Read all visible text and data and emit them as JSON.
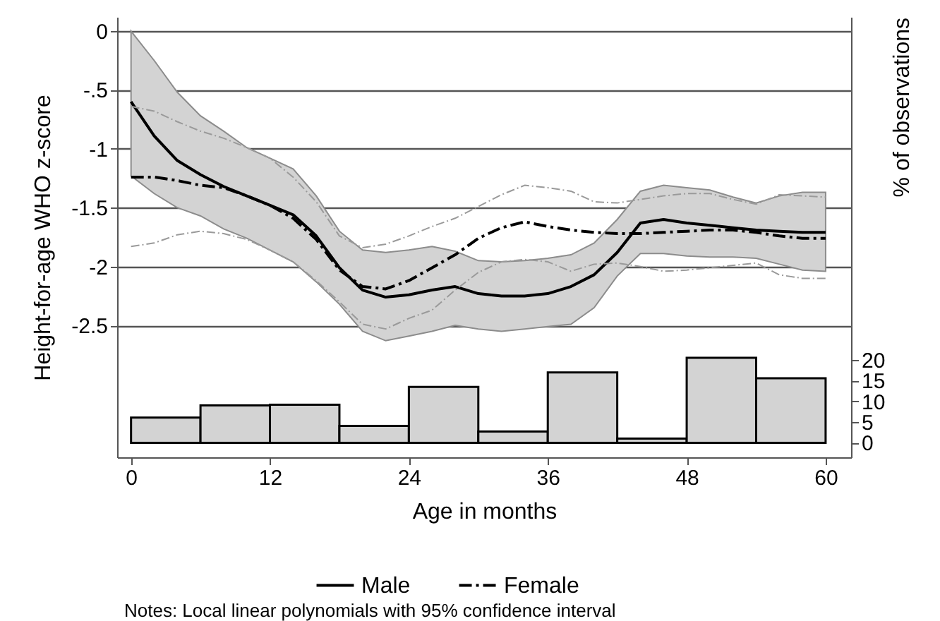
{
  "chart_data": {
    "type": "line",
    "xlabel": "Age in months",
    "ylabel": "Height-for-age WHO z-score",
    "y2label": "% of observations",
    "annotations": [
      "Notes: Local linear polynomials with 95% confidence interval"
    ],
    "xlim": [
      -1.2,
      62.2
    ],
    "xticks": [
      0,
      12,
      24,
      36,
      48,
      60
    ],
    "ylim": [
      -3.62,
      0.12
    ],
    "yticks": [
      0,
      {
        "value": -0.5,
        "label": "-.5"
      },
      -1,
      -1.5,
      -2,
      -2.5
    ],
    "y2lim": [
      -3.5,
      102.8
    ],
    "y2ticks": [
      0,
      5,
      10,
      15,
      20
    ],
    "grid": "y",
    "legend": "bottom",
    "series": [
      {
        "name": "Male",
        "color": "#000000",
        "line_style": "solid",
        "x": [
          0,
          2,
          4,
          6,
          8,
          10,
          12,
          14,
          16,
          18,
          20,
          22,
          24,
          26,
          28,
          30,
          32,
          34,
          36,
          38,
          40,
          42,
          44,
          46,
          48,
          50,
          52,
          54,
          56,
          58,
          60
        ],
        "values": [
          -0.6,
          -0.89,
          -1.1,
          -1.22,
          -1.32,
          -1.4,
          -1.48,
          -1.56,
          -1.74,
          -2.01,
          -2.2,
          -2.26,
          -2.24,
          -2.2,
          -2.17,
          -2.23,
          -2.25,
          -2.25,
          -2.23,
          -2.17,
          -2.07,
          -1.88,
          -1.63,
          -1.6,
          -1.63,
          -1.65,
          -1.67,
          -1.69,
          -1.7,
          -1.71,
          -1.71
        ],
        "upper": [
          0.0,
          -0.25,
          -0.52,
          -0.72,
          -0.85,
          -0.99,
          -1.08,
          -1.17,
          -1.4,
          -1.7,
          -1.86,
          -1.88,
          -1.86,
          -1.83,
          -1.87,
          -1.95,
          -1.96,
          -1.95,
          -1.93,
          -1.9,
          -1.8,
          -1.6,
          -1.36,
          -1.31,
          -1.33,
          -1.35,
          -1.41,
          -1.46,
          -1.4,
          -1.37,
          -1.37
        ],
        "lower": [
          -1.23,
          -1.38,
          -1.5,
          -1.57,
          -1.68,
          -1.76,
          -1.86,
          -1.96,
          -2.13,
          -2.32,
          -2.55,
          -2.63,
          -2.59,
          -2.55,
          -2.5,
          -2.53,
          -2.55,
          -2.53,
          -2.51,
          -2.49,
          -2.35,
          -2.08,
          -1.89,
          -1.89,
          -1.91,
          -1.92,
          -1.92,
          -1.93,
          -1.98,
          -2.03,
          -2.04
        ]
      },
      {
        "name": "Female",
        "color": "#000000",
        "line_style": "dashdot",
        "x": [
          0,
          2,
          4,
          6,
          8,
          10,
          12,
          14,
          16,
          18,
          20,
          22,
          24,
          26,
          28,
          30,
          32,
          34,
          36,
          38,
          40,
          42,
          44,
          46,
          48,
          50,
          52,
          54,
          56,
          58,
          60
        ],
        "values": [
          -1.24,
          -1.24,
          -1.27,
          -1.31,
          -1.33,
          -1.4,
          -1.48,
          -1.59,
          -1.77,
          -2.03,
          -2.17,
          -2.19,
          -2.12,
          -2.01,
          -1.9,
          -1.76,
          -1.67,
          -1.62,
          -1.66,
          -1.69,
          -1.71,
          -1.72,
          -1.72,
          -1.71,
          -1.7,
          -1.69,
          -1.69,
          -1.71,
          -1.74,
          -1.76,
          -1.76
        ]
      },
      {
        "color": "#9a9a9a",
        "line_style": "dashdot",
        "x": [
          0,
          2,
          4,
          6,
          8,
          10,
          12,
          14,
          16,
          18,
          20,
          22,
          24,
          26,
          28,
          30,
          32,
          34,
          36,
          38,
          40,
          42,
          44,
          46,
          48,
          50,
          52,
          54,
          56,
          58,
          60
        ],
        "values": [
          -0.64,
          -0.68,
          -0.77,
          -0.85,
          -0.91,
          -0.99,
          -1.08,
          -1.24,
          -1.45,
          -1.74,
          -1.84,
          -1.81,
          -1.74,
          -1.66,
          -1.59,
          -1.49,
          -1.39,
          -1.31,
          -1.33,
          -1.36,
          -1.45,
          -1.46,
          -1.43,
          -1.4,
          -1.38,
          -1.38,
          -1.43,
          -1.47,
          -1.39,
          -1.4,
          -1.41
        ]
      },
      {
        "color": "#9a9a9a",
        "line_style": "dashdot",
        "x": [
          0,
          2,
          4,
          6,
          8,
          10,
          12,
          14,
          16,
          18,
          20,
          22,
          24,
          26,
          28,
          30,
          32,
          34,
          36,
          38,
          40,
          42,
          44,
          46,
          48,
          50,
          52,
          54,
          56,
          58,
          60
        ],
        "values": [
          -1.83,
          -1.8,
          -1.73,
          -1.7,
          -1.72,
          -1.77,
          -1.86,
          -1.96,
          -2.12,
          -2.3,
          -2.49,
          -2.53,
          -2.44,
          -2.37,
          -2.2,
          -2.05,
          -1.96,
          -1.94,
          -1.96,
          -2.04,
          -1.98,
          -1.97,
          -2.0,
          -2.04,
          -2.03,
          -2.01,
          -1.99,
          -1.97,
          -2.07,
          -2.1,
          -2.1
        ]
      },
      {
        "type": "histogram",
        "axis": "y2",
        "color": "#d3d3d3",
        "bins": [
          0,
          6,
          12,
          18,
          24,
          30,
          36,
          42,
          48,
          54,
          60
        ],
        "values": [
          6.1,
          9.0,
          9.2,
          4.1,
          13.5,
          2.7,
          17.0,
          1.0,
          20.5,
          15.6
        ]
      }
    ]
  }
}
